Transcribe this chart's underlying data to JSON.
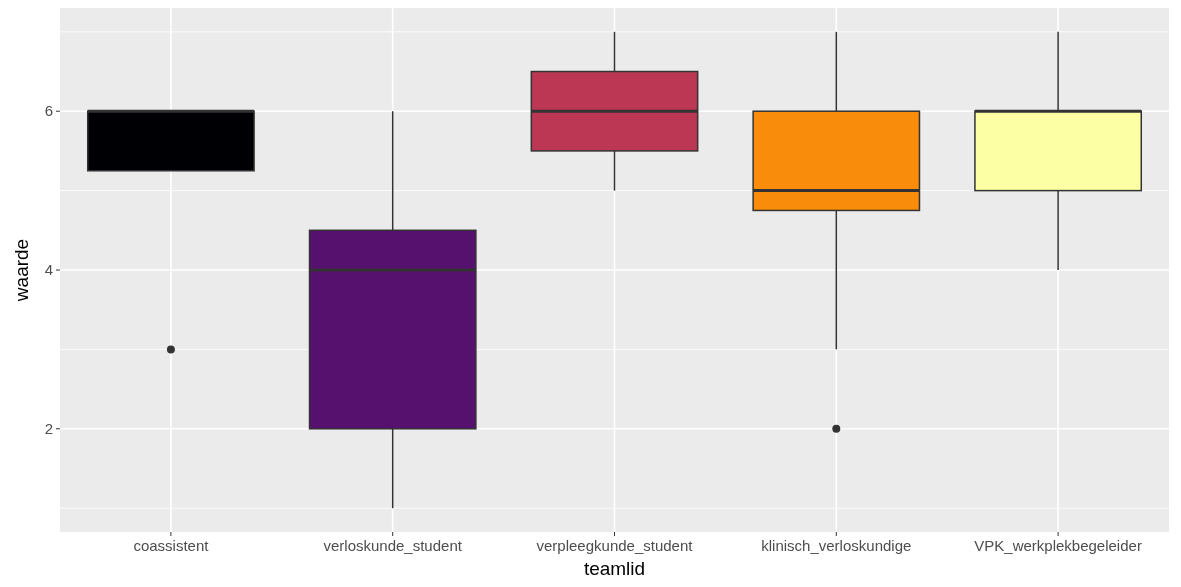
{
  "chart_data": {
    "type": "box",
    "xlabel": "teamlid",
    "ylabel": "waarde",
    "categories": [
      "coassistent",
      "verloskunde_student",
      "verpleegkunde_student",
      "klinisch_verloskundige",
      "VPK_werkplekbegeleider"
    ],
    "colors": [
      "#000004",
      "#56106e",
      "#bb3754",
      "#f98c0a",
      "#fcffa4"
    ],
    "boxes": [
      {
        "low": 5.25,
        "q1": 5.25,
        "median": 6,
        "q3": 6,
        "high": 6,
        "outliers": [
          3
        ]
      },
      {
        "low": 1,
        "q1": 2,
        "median": 4,
        "q3": 4.5,
        "high": 6
      },
      {
        "low": 5,
        "q1": 5.5,
        "median": 6,
        "q3": 6.5,
        "high": 7
      },
      {
        "low": 3,
        "q1": 4.75,
        "median": 5,
        "q3": 6,
        "high": 7,
        "outliers": [
          2
        ]
      },
      {
        "low": 4,
        "q1": 5,
        "median": 6,
        "q3": 6,
        "high": 7
      }
    ],
    "ylim": [
      0.7,
      7.3
    ],
    "yticks": [
      2,
      4,
      6
    ],
    "grid": true
  }
}
